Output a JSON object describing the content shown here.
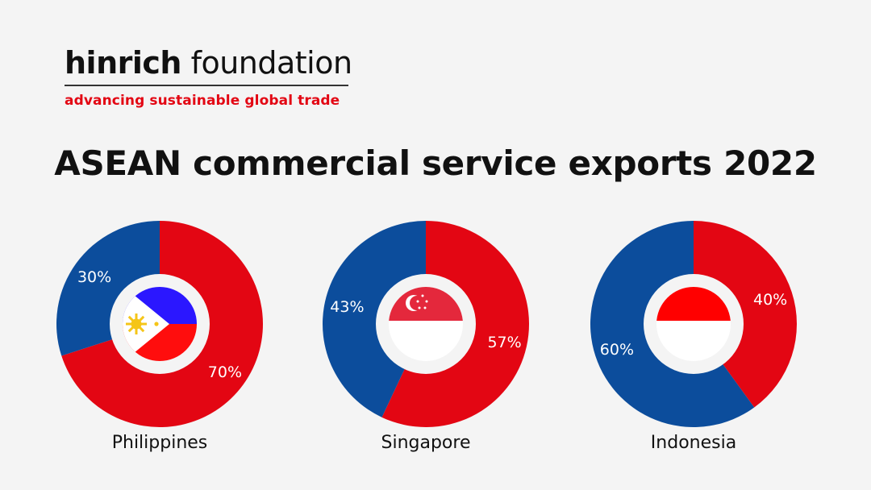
{
  "brand": {
    "name_bold": "hinrich",
    "name_regular": " foundation",
    "tagline": "advancing sustainable global trade"
  },
  "title": "ASEAN commercial service exports 2022",
  "colors": {
    "red": "#e30613",
    "blue": "#0c4d9c",
    "hole": "#f4f4f4"
  },
  "chart_data": [
    {
      "type": "pie",
      "country": "Philippines",
      "flag_icon": "philippines-flag-icon",
      "slices": [
        {
          "value": 70,
          "label": "70%",
          "color": "#e30613"
        },
        {
          "value": 30,
          "label": "30%",
          "color": "#0c4d9c"
        }
      ]
    },
    {
      "type": "pie",
      "country": "Singapore",
      "flag_icon": "singapore-flag-icon",
      "slices": [
        {
          "value": 57,
          "label": "57%",
          "color": "#e30613"
        },
        {
          "value": 43,
          "label": "43%",
          "color": "#0c4d9c"
        }
      ]
    },
    {
      "type": "pie",
      "country": "Indonesia",
      "flag_icon": "indonesia-flag-icon",
      "slices": [
        {
          "value": 40,
          "label": "40%",
          "color": "#e30613"
        },
        {
          "value": 60,
          "label": "60%",
          "color": "#0c4d9c"
        }
      ]
    }
  ]
}
